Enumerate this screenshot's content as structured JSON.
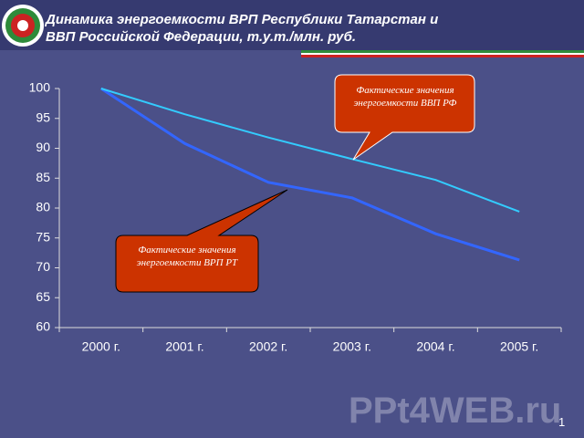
{
  "chart_data": {
    "type": "line",
    "title": "Динамика энергоемкости ВРП Республики Татарстан и ВВП Российской Федерации, т.у.т./млн. руб.",
    "categories": [
      "2000 г.",
      "2001 г.",
      "2002 г.",
      "2003 г.",
      "2004 г.",
      "2005 г."
    ],
    "series": [
      {
        "name": "Фактические значения энергоемкости ВРП РТ",
        "color": "#3366ff",
        "values": [
          100,
          90.8,
          84.3,
          81.7,
          75.7,
          71.3
        ]
      },
      {
        "name": "Фактические значения энергоемкости ВВП РФ",
        "color": "#33ccff",
        "values": [
          100,
          95.7,
          91.8,
          88.2,
          84.7,
          79.4
        ]
      }
    ],
    "ylim": [
      60,
      100
    ],
    "yticks": [
      60,
      65,
      70,
      75,
      80,
      85,
      90,
      95,
      100
    ]
  },
  "watermark": "PPt4WEB.ru",
  "page_number": "1"
}
